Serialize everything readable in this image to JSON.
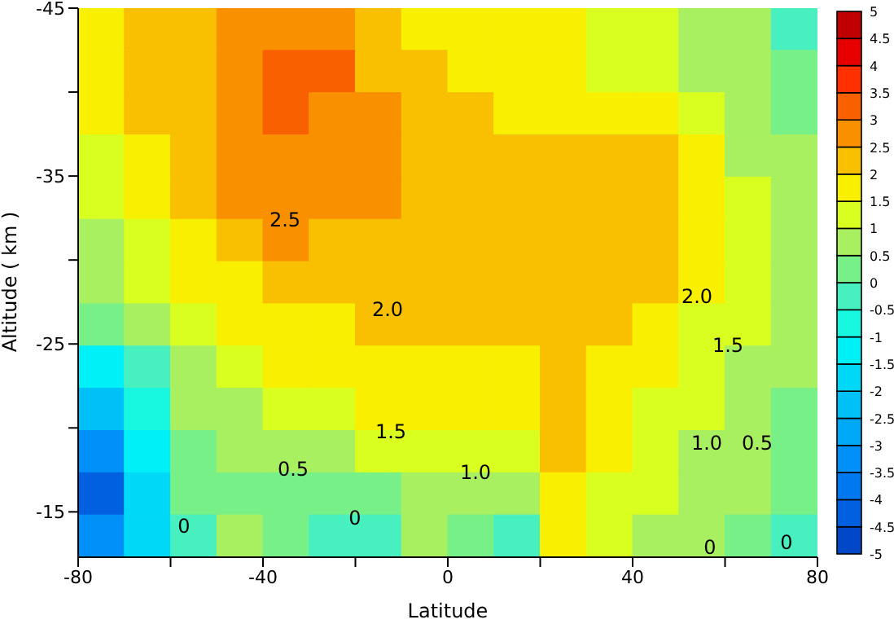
{
  "chart_data": {
    "type": "heatmap",
    "xlabel": "Latitude",
    "ylabel": "Altitude  ( km )",
    "xlim": [
      -80,
      80
    ],
    "xticks": [
      -80,
      {
        "value": -60,
        "label": null
      },
      -40,
      {
        "value": -20,
        "label": null
      },
      0,
      {
        "value": 20,
        "label": null
      },
      40,
      {
        "value": 60,
        "label": null
      },
      80
    ],
    "ylim": [
      -12.3,
      -45
    ],
    "yticks": [
      -45,
      {
        "value": -40,
        "label": null
      },
      -35,
      {
        "value": -30,
        "label": null
      },
      -25,
      {
        "value": -20,
        "label": null
      },
      -15
    ],
    "clim": [
      -5,
      5
    ],
    "cticks": [
      -5,
      -4.5,
      -4,
      -3.5,
      -3,
      -2.5,
      -2,
      -1.5,
      -1,
      -0.5,
      0,
      0.5,
      1,
      1.5,
      2,
      2.5,
      3,
      3.5,
      4,
      4.5,
      5
    ],
    "cells": [
      [
        1.8,
        2.2,
        2.3,
        2.7,
        2.8,
        2.7,
        2.3,
        1.8,
        1.8,
        1.8,
        1.7,
        1.3,
        1.2,
        0.9,
        0.6,
        -0.2
      ],
      [
        1.8,
        2.2,
        2.4,
        2.8,
        3.2,
        3.1,
        2.4,
        2.0,
        1.8,
        1.7,
        1.6,
        1.3,
        1.2,
        0.9,
        0.6,
        0.3
      ],
      [
        1.7,
        2.0,
        2.4,
        2.9,
        3.2,
        2.9,
        2.6,
        2.2,
        2.0,
        1.8,
        1.8,
        1.7,
        1.6,
        1.2,
        0.7,
        0.4
      ],
      [
        1.3,
        1.8,
        2.3,
        2.8,
        2.9,
        2.8,
        2.6,
        2.3,
        2.2,
        2.1,
        2.0,
        2.0,
        2.1,
        1.6,
        0.9,
        0.5
      ],
      [
        1.2,
        1.6,
        2.2,
        2.6,
        2.7,
        2.7,
        2.5,
        2.3,
        2.2,
        2.2,
        2.2,
        2.2,
        2.2,
        1.7,
        1.0,
        0.6
      ],
      [
        0.8,
        1.3,
        1.9,
        2.3,
        2.5,
        2.4,
        2.3,
        2.3,
        2.3,
        2.2,
        2.2,
        2.2,
        2.2,
        1.7,
        1.1,
        0.7
      ],
      [
        0.6,
        1.0,
        1.5,
        1.9,
        2.1,
        2.2,
        2.2,
        2.3,
        2.2,
        2.2,
        2.2,
        2.2,
        2.0,
        1.6,
        1.1,
        0.6
      ],
      [
        0.3,
        0.7,
        1.2,
        1.6,
        1.8,
        1.9,
        2.0,
        2.1,
        2.2,
        2.1,
        2.2,
        2.1,
        1.7,
        1.4,
        1.0,
        0.5
      ],
      [
        -1.5,
        -0.2,
        0.8,
        1.2,
        1.5,
        1.7,
        1.8,
        1.9,
        1.9,
        1.8,
        2.1,
        1.9,
        1.6,
        1.2,
        0.9,
        0.5
      ],
      [
        -2.5,
        -1.0,
        0.6,
        0.9,
        1.2,
        1.4,
        1.5,
        1.6,
        1.6,
        1.7,
        2.1,
        1.8,
        1.4,
        1.1,
        0.8,
        0.4
      ],
      [
        -3.5,
        -1.5,
        0.2,
        0.6,
        0.6,
        0.8,
        1.0,
        1.3,
        1.2,
        1.3,
        2.1,
        1.6,
        1.2,
        0.9,
        0.7,
        0.3
      ],
      [
        -4.2,
        -2.0,
        0.1,
        0.4,
        0.3,
        0.2,
        0.3,
        0.7,
        0.6,
        0.5,
        1.7,
        1.4,
        1.0,
        0.8,
        0.6,
        0.2
      ],
      [
        -3.5,
        -1.8,
        -0.1,
        0.6,
        0.3,
        -0.2,
        -0.1,
        0.6,
        0.3,
        -0.2,
        1.6,
        1.2,
        0.8,
        0.6,
        0.4,
        -0.1
      ]
    ],
    "annotations": [
      "2.5",
      "2.0",
      "1.5",
      "0.5",
      "1.0",
      "0",
      "0",
      "2.0",
      "1.5",
      "1.0",
      "0.5",
      "0",
      "0"
    ]
  }
}
